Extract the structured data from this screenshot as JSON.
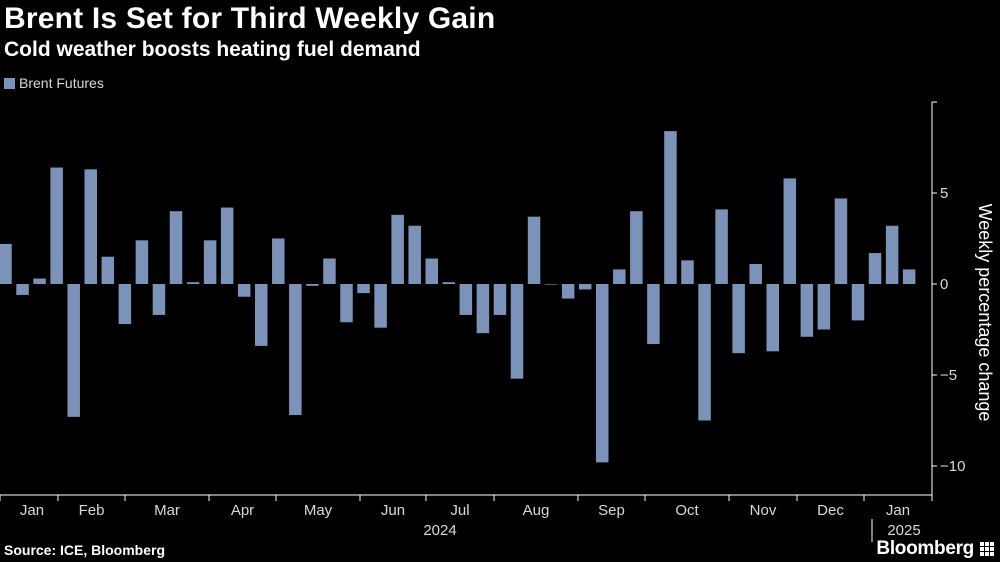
{
  "header": {
    "title": "Brent Is Set for Third Weekly Gain",
    "subtitle": "Cold weather boosts heating fuel demand"
  },
  "footer": {
    "source": "Source: ICE, Bloomberg",
    "brand": "Bloomberg"
  },
  "colors": {
    "background": "#000000",
    "bar": "#7b93b8",
    "axis": "#ffffff",
    "text": "#d8d8d8"
  },
  "chart_data": {
    "type": "bar",
    "title": "Brent Is Set for Third Weekly Gain",
    "subtitle": "Cold weather boosts heating fuel demand",
    "ylabel": "Weekly percentage change",
    "xlabel": "",
    "ylim": [
      -11,
      10
    ],
    "yticks": [
      5,
      0,
      -5,
      -10
    ],
    "legend": [
      "Brent Futures"
    ],
    "legend_position": "top-left",
    "grid": false,
    "month_labels": [
      "Jan",
      "Feb",
      "Mar",
      "Apr",
      "May",
      "Jun",
      "Jul",
      "Aug",
      "Sep",
      "Oct",
      "Nov",
      "Dec",
      "Jan"
    ],
    "year_labels": [
      "2024",
      "2025"
    ],
    "series": [
      {
        "name": "Brent Futures",
        "values": [
          2.2,
          -0.6,
          0.3,
          6.4,
          -7.3,
          6.3,
          1.5,
          -2.2,
          2.4,
          -1.7,
          4.0,
          0.1,
          2.4,
          4.2,
          -0.7,
          -3.4,
          2.5,
          -7.2,
          -0.1,
          1.4,
          -2.1,
          -0.5,
          -2.4,
          3.8,
          3.2,
          1.4,
          0.1,
          -1.7,
          -2.7,
          -1.7,
          -5.2,
          3.7,
          0.0,
          -0.8,
          -0.3,
          -9.8,
          0.8,
          4.0,
          -3.3,
          8.4,
          1.3,
          -7.5,
          4.1,
          -3.8,
          1.1,
          -3.7,
          5.8,
          -2.9,
          -2.5,
          4.7,
          -2.0,
          1.7,
          3.2,
          0.8
        ]
      }
    ]
  }
}
